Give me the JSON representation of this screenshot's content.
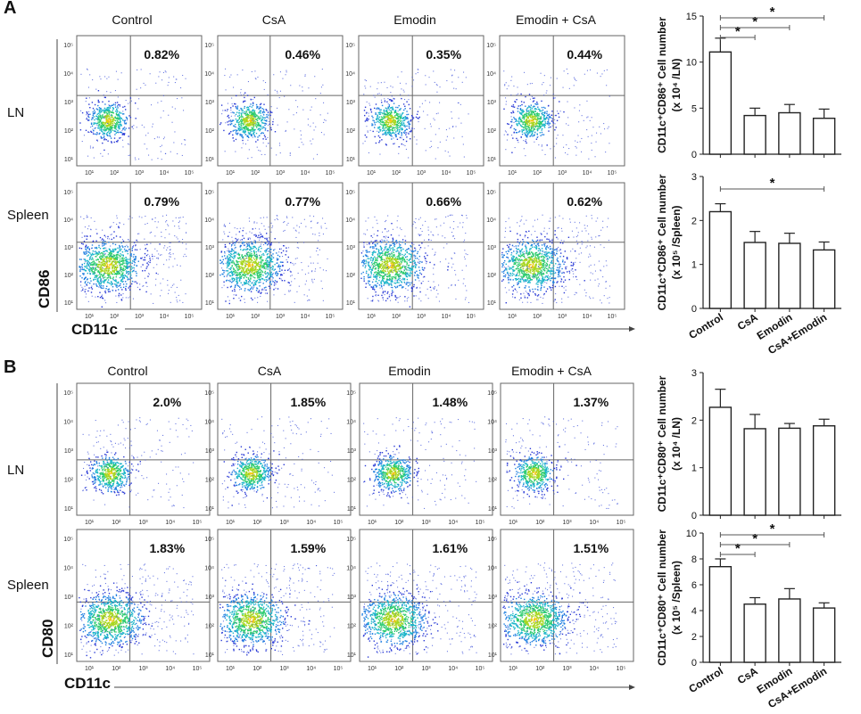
{
  "panels": [
    {
      "label": "A",
      "marker": "CD86",
      "x_marker": "CD11c",
      "groups": [
        "Control",
        "CsA",
        "Emodin",
        "Emodin + CsA"
      ],
      "rows": [
        {
          "name": "LN",
          "percents": [
            "0.82%",
            "0.46%",
            "0.35%",
            "0.44%"
          ]
        },
        {
          "name": "Spleen",
          "percents": [
            "0.79%",
            "0.77%",
            "0.66%",
            "0.62%"
          ]
        }
      ]
    },
    {
      "label": "B",
      "marker": "CD80",
      "x_marker": "CD11c",
      "groups": [
        "Control",
        "CsA",
        "Emodin",
        "Emodin + CsA"
      ],
      "rows": [
        {
          "name": "LN",
          "percents": [
            "2.0%",
            "1.85%",
            "1.48%",
            "1.37%"
          ]
        },
        {
          "name": "Spleen",
          "percents": [
            "1.83%",
            "1.59%",
            "1.61%",
            "1.51%"
          ]
        }
      ]
    }
  ],
  "flow_ticks": {
    "y": [
      "10⁵",
      "10⁴",
      "10³",
      "10²",
      "10¹"
    ],
    "x": [
      "10¹",
      "10²",
      "10³",
      "10⁴",
      "10⁵"
    ]
  },
  "chart_data": [
    {
      "type": "bar",
      "title": "",
      "ylabel": "CD11c⁺CD86⁺ Cell number",
      "ylabel2": "(x 10⁴ /LN)",
      "categories": [
        "Control",
        "CsA",
        "Emodin",
        "CsA+Emodin"
      ],
      "values": [
        11.1,
        4.2,
        4.5,
        3.9
      ],
      "errors": [
        1.5,
        0.8,
        0.9,
        1.0
      ],
      "ylim": [
        0,
        15
      ],
      "yticks": [
        0,
        5,
        10,
        15
      ],
      "show_xlabels": false,
      "significance": [
        {
          "from": 0,
          "to": 1,
          "label": "*"
        },
        {
          "from": 0,
          "to": 2,
          "label": "*"
        },
        {
          "from": 0,
          "to": 3,
          "label": "*"
        }
      ]
    },
    {
      "type": "bar",
      "title": "",
      "ylabel": "CD11c⁺CD86⁺ Cell number",
      "ylabel2": "(x 10⁵ /Spleen)",
      "categories": [
        "Control",
        "CsA",
        "Emodin",
        "CsA+Emodin"
      ],
      "values": [
        2.2,
        1.5,
        1.48,
        1.33
      ],
      "errors": [
        0.18,
        0.25,
        0.23,
        0.18
      ],
      "ylim": [
        0,
        3
      ],
      "yticks": [
        0,
        1,
        2,
        3
      ],
      "show_xlabels": true,
      "significance": [
        {
          "from": 0,
          "to": 3,
          "label": "*"
        }
      ]
    },
    {
      "type": "bar",
      "title": "",
      "ylabel": "CD11c⁺CD80⁺ Cell number",
      "ylabel2": "(x 10⁴ /LN)",
      "categories": [
        "Control",
        "CsA",
        "Emodin",
        "CsA+Emodin"
      ],
      "values": [
        2.27,
        1.82,
        1.83,
        1.88
      ],
      "errors": [
        0.38,
        0.3,
        0.1,
        0.14
      ],
      "ylim": [
        0,
        3
      ],
      "yticks": [
        0,
        1,
        2,
        3
      ],
      "show_xlabels": false,
      "significance": []
    },
    {
      "type": "bar",
      "title": "",
      "ylabel": "CD11c⁺CD80⁺ Cell number",
      "ylabel2": "(x 10⁵ /Spleen)",
      "categories": [
        "Control",
        "CsA",
        "Emodin",
        "CsA+Emodin"
      ],
      "values": [
        7.4,
        4.5,
        4.9,
        4.2
      ],
      "errors": [
        0.6,
        0.5,
        0.8,
        0.4
      ],
      "ylim": [
        0,
        10
      ],
      "yticks": [
        0,
        2,
        4,
        6,
        8,
        10
      ],
      "show_xlabels": true,
      "significance": [
        {
          "from": 0,
          "to": 1,
          "label": "*"
        },
        {
          "from": 0,
          "to": 2,
          "label": "*"
        },
        {
          "from": 0,
          "to": 3,
          "label": "*"
        }
      ]
    }
  ]
}
